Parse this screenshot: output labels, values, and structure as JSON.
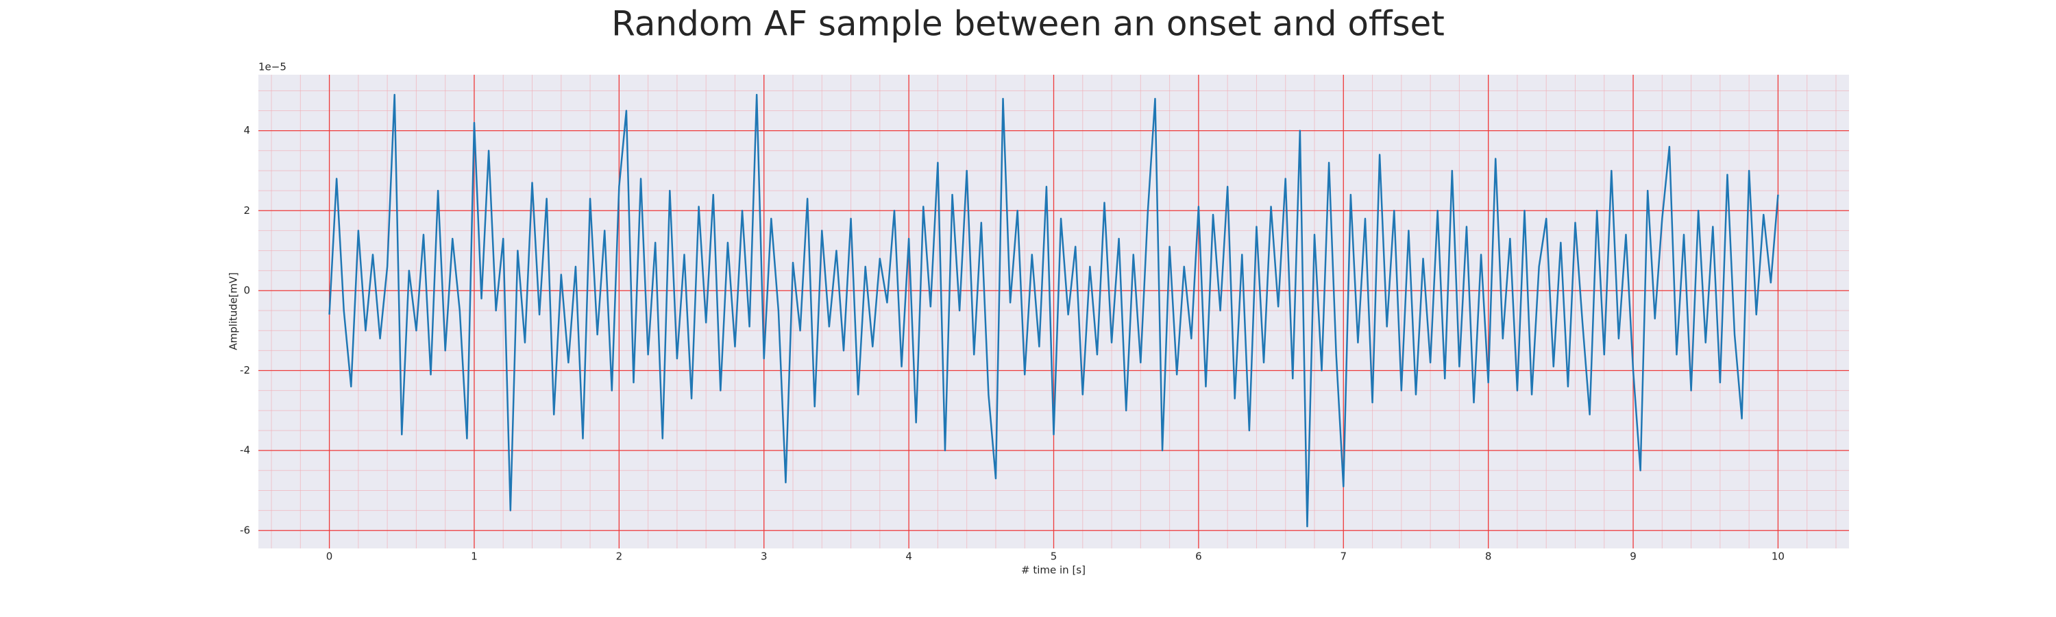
{
  "chart_data": {
    "type": "line",
    "title": "Random AF sample between an onset and offset",
    "xlabel": "# time in [s]",
    "ylabel": "Amplitude[mV]",
    "y_offset_label": "1e−5",
    "color": "#1f77b4",
    "grid": true,
    "xlim": [
      -0.49,
      10.49
    ],
    "ylim": [
      -6.45,
      5.4
    ],
    "xticks": [
      0,
      1,
      2,
      3,
      4,
      5,
      6,
      7,
      8,
      9,
      10
    ],
    "yticks": [
      -6,
      -4,
      -2,
      0,
      2,
      4
    ],
    "x_minor_ticks": [
      -0.4,
      -0.2,
      0,
      0.2,
      0.4,
      0.6,
      0.8,
      1,
      1.2,
      1.4,
      1.6,
      1.8,
      2,
      2.2,
      2.4,
      2.6,
      2.8,
      3,
      3.2,
      3.4,
      3.6,
      3.8,
      4,
      4.2,
      4.4,
      4.6,
      4.8,
      5,
      5.2,
      5.4,
      5.6,
      5.8,
      6,
      6.2,
      6.4,
      6.6,
      6.8,
      7,
      7.2,
      7.4,
      7.6,
      7.8,
      8,
      8.2,
      8.4,
      8.6,
      8.8,
      9,
      9.2,
      9.4,
      9.6,
      9.8,
      10,
      10.2,
      10.4
    ],
    "y_minor_ticks": [
      -6,
      -5.5,
      -5,
      -4.5,
      -4,
      -3.5,
      -3,
      -2.5,
      -2,
      -1.5,
      -1,
      -0.5,
      0,
      0.5,
      1,
      1.5,
      2,
      2.5,
      3,
      3.5,
      4,
      4.5,
      5
    ],
    "x": [
      0,
      0.05,
      0.1,
      0.15,
      0.2,
      0.25,
      0.3,
      0.35,
      0.4,
      0.45,
      0.5,
      0.55,
      0.6,
      0.65,
      0.7,
      0.75,
      0.8,
      0.85,
      0.9,
      0.95,
      1,
      1.05,
      1.1,
      1.15,
      1.2,
      1.25,
      1.3,
      1.35,
      1.4,
      1.45,
      1.5,
      1.55,
      1.6,
      1.65,
      1.7,
      1.75,
      1.8,
      1.85,
      1.9,
      1.95,
      2,
      2.05,
      2.1,
      2.15,
      2.2,
      2.25,
      2.3,
      2.35,
      2.4,
      2.45,
      2.5,
      2.55,
      2.6,
      2.65,
      2.7,
      2.75,
      2.8,
      2.85,
      2.9,
      2.95,
      3,
      3.05,
      3.1,
      3.15,
      3.2,
      3.25,
      3.3,
      3.35,
      3.4,
      3.45,
      3.5,
      3.55,
      3.6,
      3.65,
      3.7,
      3.75,
      3.8,
      3.85,
      3.9,
      3.95,
      4,
      4.05,
      4.1,
      4.15,
      4.2,
      4.25,
      4.3,
      4.35,
      4.4,
      4.45,
      4.5,
      4.55,
      4.6,
      4.65,
      4.7,
      4.75,
      4.8,
      4.85,
      4.9,
      4.95,
      5,
      5.05,
      5.1,
      5.15,
      5.2,
      5.25,
      5.3,
      5.35,
      5.4,
      5.45,
      5.5,
      5.55,
      5.6,
      5.65,
      5.7,
      5.75,
      5.8,
      5.85,
      5.9,
      5.95,
      6,
      6.05,
      6.1,
      6.15,
      6.2,
      6.25,
      6.3,
      6.35,
      6.4,
      6.45,
      6.5,
      6.55,
      6.6,
      6.65,
      6.7,
      6.75,
      6.8,
      6.85,
      6.9,
      6.95,
      7,
      7.05,
      7.1,
      7.15,
      7.2,
      7.25,
      7.3,
      7.35,
      7.4,
      7.45,
      7.5,
      7.55,
      7.6,
      7.65,
      7.7,
      7.75,
      7.8,
      7.85,
      7.9,
      7.95,
      8,
      8.05,
      8.1,
      8.15,
      8.2,
      8.25,
      8.3,
      8.35,
      8.4,
      8.45,
      8.5,
      8.55,
      8.6,
      8.65,
      8.7,
      8.75,
      8.8,
      8.85,
      8.9,
      8.95,
      9,
      9.05,
      9.1,
      9.15,
      9.2,
      9.25,
      9.3,
      9.35,
      9.4,
      9.45,
      9.5,
      9.55,
      9.6,
      9.65,
      9.7,
      9.75,
      9.8,
      9.85,
      9.9,
      9.95,
      10
    ],
    "values": [
      -0.6,
      2.8,
      -0.5,
      -2.4,
      1.5,
      -1.0,
      0.9,
      -1.2,
      0.6,
      4.9,
      -3.6,
      0.5,
      -1.0,
      1.4,
      -2.1,
      2.5,
      -1.5,
      1.3,
      -0.5,
      -3.7,
      4.2,
      -0.2,
      3.5,
      -0.5,
      1.3,
      -5.5,
      1.0,
      -1.3,
      2.7,
      -0.6,
      2.3,
      -3.1,
      0.4,
      -1.8,
      0.6,
      -3.7,
      2.3,
      -1.1,
      1.5,
      -2.5,
      2.6,
      4.5,
      -2.3,
      2.8,
      -1.6,
      1.2,
      -3.7,
      2.5,
      -1.7,
      0.9,
      -2.7,
      2.1,
      -0.8,
      2.4,
      -2.5,
      1.2,
      -1.4,
      2.0,
      -0.9,
      4.9,
      -1.7,
      1.8,
      -0.5,
      -4.8,
      0.7,
      -1.0,
      2.3,
      -2.9,
      1.5,
      -0.9,
      1.0,
      -1.5,
      1.8,
      -2.6,
      0.6,
      -1.4,
      0.8,
      -0.3,
      2.0,
      -1.9,
      1.3,
      -3.3,
      2.1,
      -0.4,
      3.2,
      -4.0,
      2.4,
      -0.5,
      3.0,
      -1.6,
      1.7,
      -2.6,
      -4.7,
      4.8,
      -0.3,
      2.0,
      -2.1,
      0.9,
      -1.4,
      2.6,
      -3.6,
      1.8,
      -0.6,
      1.1,
      -2.6,
      0.6,
      -1.6,
      2.2,
      -1.3,
      1.3,
      -3.0,
      0.9,
      -1.8,
      2.0,
      4.8,
      -4.0,
      1.1,
      -2.1,
      0.6,
      -1.2,
      2.1,
      -2.4,
      1.9,
      -0.5,
      2.6,
      -2.7,
      0.9,
      -3.5,
      1.6,
      -1.8,
      2.1,
      -0.4,
      2.8,
      -2.2,
      4.0,
      -5.9,
      1.4,
      -2.0,
      3.2,
      -1.6,
      -4.9,
      2.4,
      -1.3,
      1.8,
      -2.8,
      3.4,
      -0.9,
      2.0,
      -2.5,
      1.5,
      -2.6,
      0.8,
      -1.8,
      2.0,
      -2.2,
      3.0,
      -1.9,
      1.6,
      -2.8,
      0.9,
      -2.3,
      3.3,
      -1.2,
      1.3,
      -2.5,
      2.0,
      -2.6,
      0.6,
      1.8,
      -1.9,
      1.2,
      -2.4,
      1.7,
      -0.8,
      -3.1,
      2.0,
      -1.6,
      3.0,
      -1.2,
      1.4,
      -2.0,
      -4.5,
      2.5,
      -0.7,
      1.8,
      3.6,
      -1.6,
      1.4,
      -2.5,
      2.0,
      -1.3,
      1.6,
      -2.3,
      2.9,
      -1.1,
      -3.2,
      3.0,
      -0.6,
      1.9,
      0.2,
      2.4
    ]
  }
}
